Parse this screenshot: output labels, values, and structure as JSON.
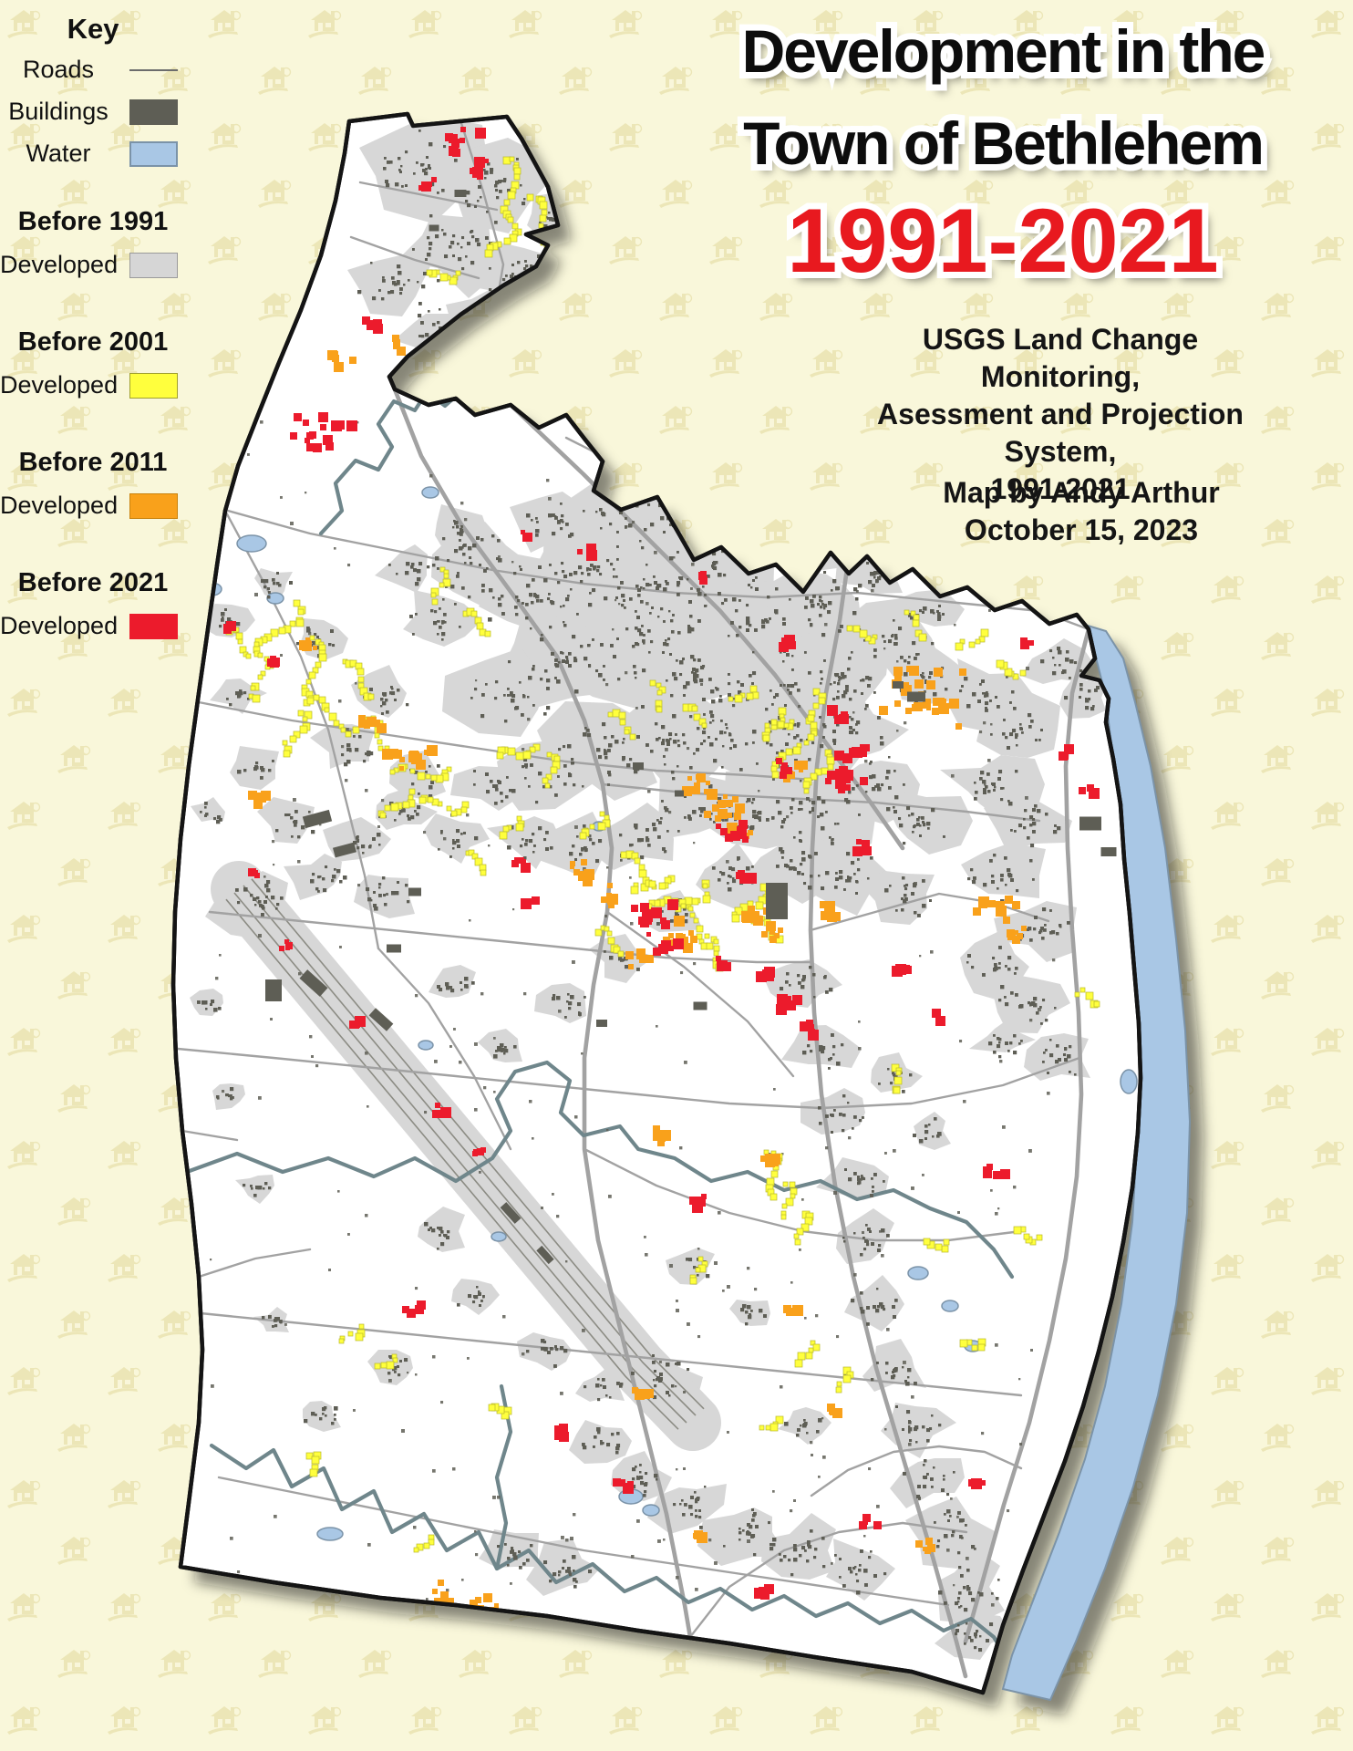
{
  "title": {
    "line1": "Development in the",
    "line2": "Town of Bethlehem",
    "line3": "1991-2021"
  },
  "subtitle": {
    "line1": "USGS Land Change Monitoring,",
    "line2": "Asessment and Projection System,",
    "line3": "1991-2021"
  },
  "credits": {
    "line1": "Map by Andy Arthur",
    "line2": "October 15, 2023"
  },
  "legend": {
    "title": "Key",
    "items": [
      {
        "label": "Roads",
        "type": "line"
      },
      {
        "label": "Buildings",
        "type": "swatch",
        "color": "#5e5e55",
        "border": "#50504a"
      },
      {
        "label": "Water",
        "type": "swatch",
        "color": "#a9c7e5",
        "border": "#7b93a8"
      }
    ],
    "periods": [
      {
        "header": "Before 1991",
        "label": "Developed",
        "color": "#d6d6d6",
        "border": "#9a9a9a"
      },
      {
        "header": "Before 2001",
        "label": "Developed",
        "color": "#ffff3d",
        "border": "#bdbd30"
      },
      {
        "header": "Before 2011",
        "label": "Developed",
        "color": "#f9a11b",
        "border": "#c9820d"
      },
      {
        "header": "Before 2021",
        "label": "Developed",
        "color": "#ec1b2c",
        "border": "#ec1b2c"
      }
    ]
  },
  "map": {
    "region_label": "Town of Bethlehem map",
    "colors": {
      "background": "#f9f7da",
      "pattern": "#e9e2ae",
      "town_fill": "#ffffff",
      "outline": "#141414",
      "developed_1991": "#d7d7d7",
      "developed_2001": "#ffff3d",
      "developed_2001_edge": "#b9b92a",
      "developed_2011": "#f9a11b",
      "developed_2021": "#ec1b2c",
      "buildings": "#5e5e55",
      "roads": "#a2a2a2",
      "rail": "#8c8c84",
      "water": "#a9c7e5",
      "water_edge": "#7b93a8",
      "stream": "#6f868b",
      "shadow": "rgba(25,25,25,0.5)"
    }
  }
}
